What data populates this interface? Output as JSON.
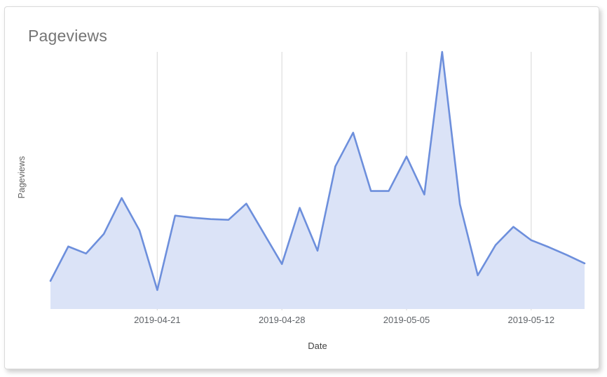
{
  "card": {
    "title": "Pageviews"
  },
  "chart_data": {
    "type": "area",
    "title": "Pageviews",
    "xlabel": "Date",
    "ylabel": "Pageviews",
    "legend": "none",
    "grid": "vertical-only",
    "y_axis_tick_labels_visible": false,
    "ylim": [
      0,
      730
    ],
    "x": [
      "2019-04-15",
      "2019-04-16",
      "2019-04-17",
      "2019-04-18",
      "2019-04-19",
      "2019-04-20",
      "2019-04-21",
      "2019-04-22",
      "2019-04-23",
      "2019-04-24",
      "2019-04-25",
      "2019-04-26",
      "2019-04-27",
      "2019-04-28",
      "2019-04-29",
      "2019-04-30",
      "2019-05-01",
      "2019-05-02",
      "2019-05-03",
      "2019-05-04",
      "2019-05-05",
      "2019-05-06",
      "2019-05-07",
      "2019-05-08",
      "2019-05-09",
      "2019-05-10",
      "2019-05-11",
      "2019-05-12",
      "2019-05-13",
      "2019-05-14",
      "2019-05-15"
    ],
    "series": [
      {
        "name": "Pageviews",
        "values": [
          78,
          176,
          156,
          212,
          314,
          222,
          52,
          264,
          258,
          254,
          252,
          298,
          212,
          126,
          286,
          164,
          404,
          500,
          334,
          334,
          432,
          324,
          730,
          296,
          94,
          180,
          232,
          194,
          174,
          152,
          128
        ]
      }
    ],
    "x_ticks": [
      {
        "label": "2019-04-21",
        "index": 6
      },
      {
        "label": "2019-04-28",
        "index": 13
      },
      {
        "label": "2019-05-05",
        "index": 20
      },
      {
        "label": "2019-05-12",
        "index": 27
      }
    ],
    "colors": {
      "line": "#6d8fdc",
      "fill": "#dbe3f7",
      "gridline": "#e0e0e0",
      "title_text": "#757575",
      "tick_text": "#5f6368",
      "axis_title_text": "#424242"
    }
  }
}
